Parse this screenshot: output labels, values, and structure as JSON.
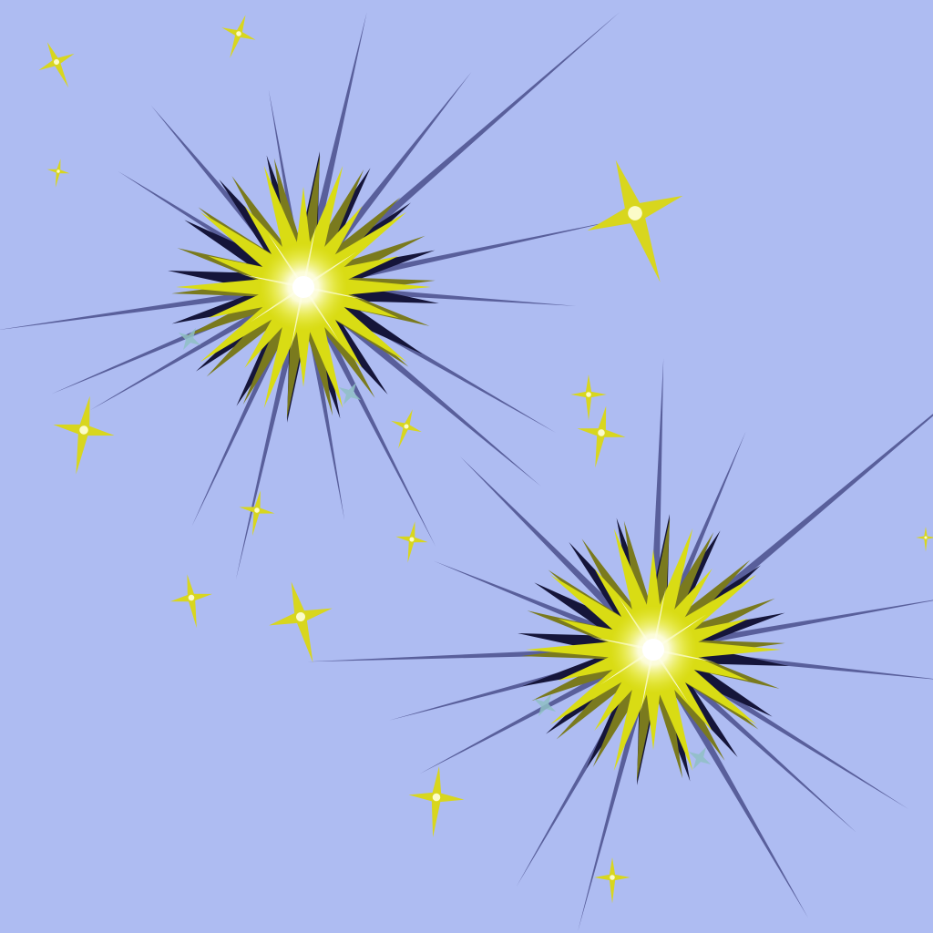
{
  "scene": {
    "kind": "illustration",
    "background_color": "#aebcf2",
    "burst_colors": {
      "ray_dark": "#4a4f8c",
      "ray_black": "#15153a",
      "petal_yellow": "#d9dc14",
      "petal_olive": "#7a7a1e",
      "core_white": "#ffffff",
      "core_glow": "#f6f7a8",
      "sparkle_yellow": "#d8d61e",
      "sparkle_teal": "#8fc0c4"
    }
  }
}
